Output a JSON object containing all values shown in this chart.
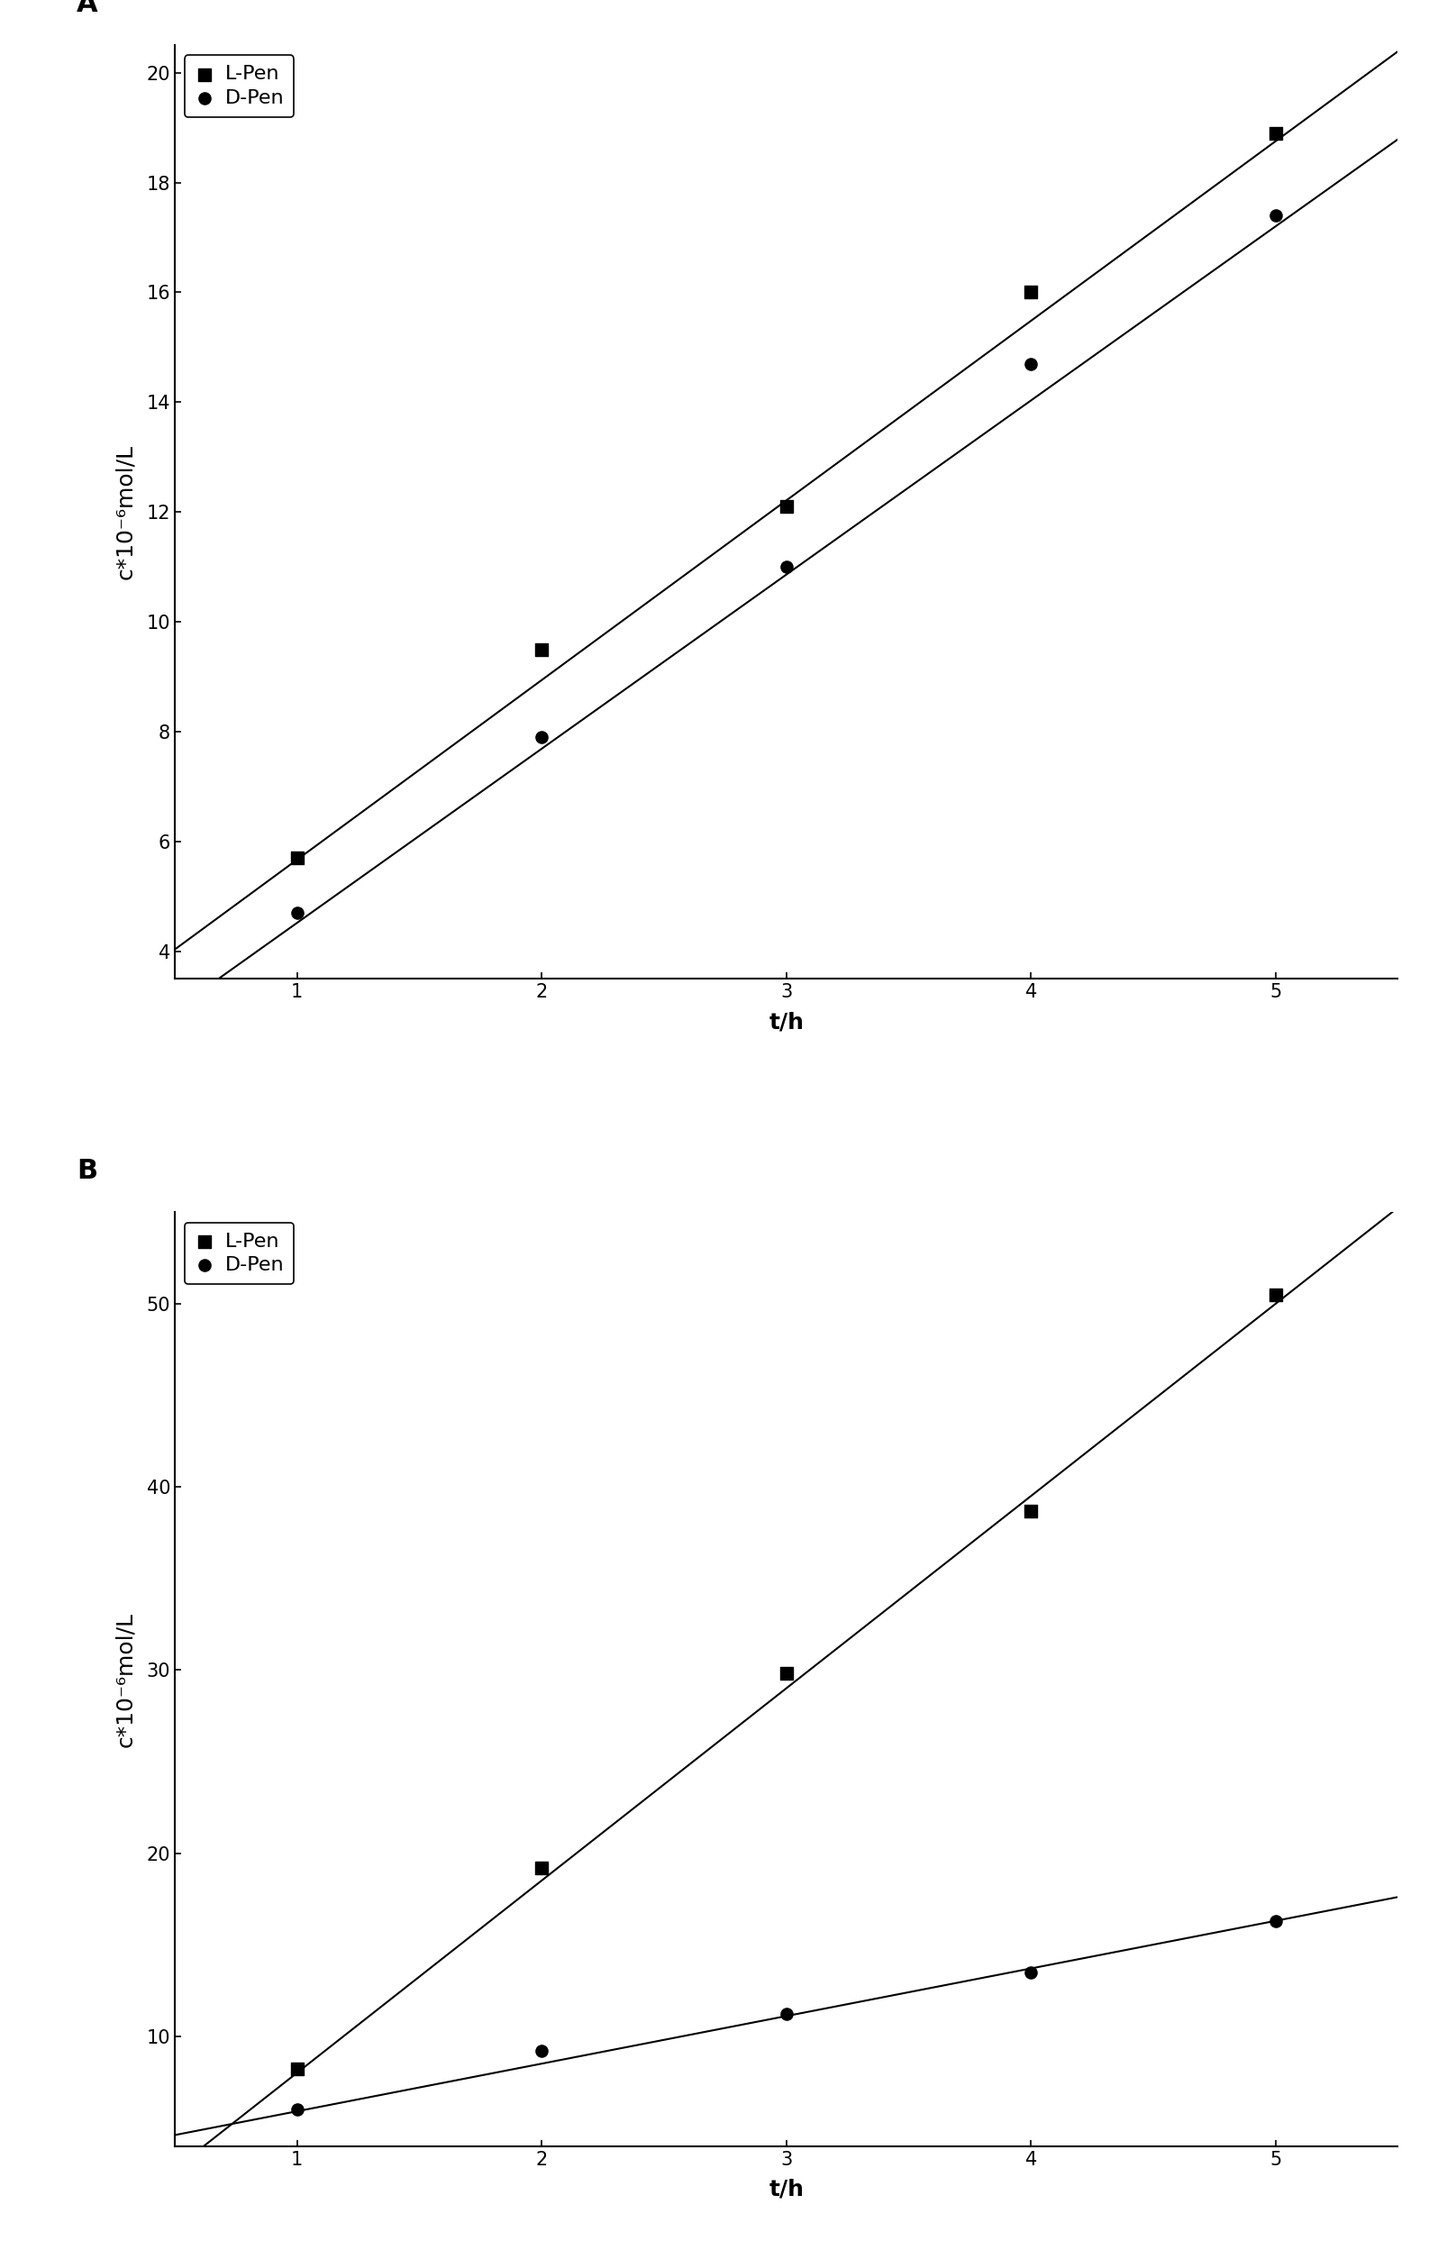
{
  "panel_A": {
    "label": "A",
    "L_Pen_x": [
      1,
      2,
      3,
      4,
      5
    ],
    "L_Pen_y": [
      5.7,
      9.5,
      12.1,
      16.0,
      18.9
    ],
    "D_Pen_x": [
      1,
      2,
      3,
      4,
      5
    ],
    "D_Pen_y": [
      4.7,
      7.9,
      11.0,
      14.7,
      17.4
    ],
    "L_line_slope": 3.27,
    "L_line_intercept": 2.4,
    "D_line_slope": 3.17,
    "D_line_intercept": 1.35,
    "xlim": [
      0.5,
      5.5
    ],
    "ylim": [
      3.5,
      20.5
    ],
    "yticks": [
      4,
      6,
      8,
      10,
      12,
      14,
      16,
      18,
      20
    ],
    "xticks": [
      1,
      2,
      3,
      4,
      5
    ],
    "xlabel": "t/h",
    "ylabel": "c*10⁻⁶mol/L"
  },
  "panel_B": {
    "label": "B",
    "L_Pen_x": [
      1,
      2,
      3,
      4,
      5
    ],
    "L_Pen_y": [
      8.2,
      19.2,
      29.8,
      38.7,
      50.5
    ],
    "D_Pen_x": [
      1,
      2,
      3,
      4,
      5
    ],
    "D_Pen_y": [
      6.0,
      9.2,
      11.2,
      13.5,
      16.3
    ],
    "L_line_slope": 10.5,
    "L_line_intercept": -2.5,
    "D_line_slope": 2.6,
    "D_line_intercept": 3.3,
    "xlim": [
      0.5,
      5.5
    ],
    "ylim": [
      4.0,
      55.0
    ],
    "yticks": [
      10,
      20,
      30,
      40,
      50
    ],
    "xticks": [
      1,
      2,
      3,
      4,
      5
    ],
    "xlabel": "t/h",
    "ylabel": "c*10⁻⁶mol/L"
  },
  "marker_size": 90,
  "line_color": "#000000",
  "marker_color": "#000000",
  "background_color": "#ffffff",
  "legend_labels": [
    "L-Pen",
    "D-Pen"
  ],
  "font_size_label": 18,
  "font_size_tick": 15,
  "font_size_legend": 16,
  "font_size_panel_label": 22
}
